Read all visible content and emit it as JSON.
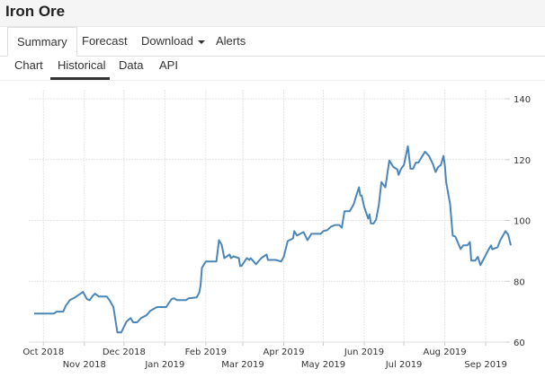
{
  "header": {
    "title": "Iron Ore"
  },
  "tabs": [
    {
      "label": "Summary",
      "active": true
    },
    {
      "label": "Forecast"
    },
    {
      "label": "Download",
      "dropdown": true
    },
    {
      "label": "Alerts"
    }
  ],
  "subtabs": [
    {
      "label": "Chart"
    },
    {
      "label": "Historical",
      "active": true
    },
    {
      "label": "Data"
    },
    {
      "label": "API"
    }
  ],
  "chart_data": {
    "type": "line",
    "title": "",
    "xlabel": "",
    "ylabel": "",
    "ylim": [
      60,
      140
    ],
    "yticks": [
      "60",
      "80",
      "100",
      "120",
      "140"
    ],
    "xlim": [
      "2018-09-24",
      "2019-09-20"
    ],
    "xticks": [
      {
        "date": "2018-10-01",
        "label": "Oct 2018"
      },
      {
        "date": "2018-11-01",
        "label": "Nov 2018"
      },
      {
        "date": "2018-12-01",
        "label": "Dec 2018"
      },
      {
        "date": "2019-01-01",
        "label": "Jan 2019"
      },
      {
        "date": "2019-02-01",
        "label": "Feb 2019"
      },
      {
        "date": "2019-03-01",
        "label": "Mar 2019"
      },
      {
        "date": "2019-04-01",
        "label": "Apr 2019"
      },
      {
        "date": "2019-05-01",
        "label": "May 2019"
      },
      {
        "date": "2019-06-01",
        "label": "Jun 2019"
      },
      {
        "date": "2019-07-01",
        "label": "Jul 2019"
      },
      {
        "date": "2019-08-01",
        "label": "Aug 2019"
      },
      {
        "date": "2019-09-01",
        "label": "Sep 2019"
      }
    ],
    "grid": true,
    "line_color": "#4a86b8",
    "series": [
      {
        "points": [
          [
            "2018-09-24",
            69.4
          ],
          [
            "2018-10-09",
            69.4
          ],
          [
            "2018-10-11",
            70
          ],
          [
            "2018-10-16",
            70
          ],
          [
            "2018-10-18",
            72
          ],
          [
            "2018-10-21",
            73.8
          ],
          [
            "2018-10-25",
            74.7
          ],
          [
            "2018-10-30",
            76.2
          ],
          [
            "2018-10-31",
            76.5
          ],
          [
            "2018-11-03",
            74.1
          ],
          [
            "2018-11-05",
            73.8
          ],
          [
            "2018-11-07",
            75
          ],
          [
            "2018-11-09",
            75.9
          ],
          [
            "2018-11-12",
            75
          ],
          [
            "2018-11-18",
            75
          ],
          [
            "2018-11-20",
            73.8
          ],
          [
            "2018-11-23",
            71.5
          ],
          [
            "2018-11-26",
            63.2
          ],
          [
            "2018-11-29",
            63.2
          ],
          [
            "2018-12-01",
            65
          ],
          [
            "2018-12-03",
            66.8
          ],
          [
            "2018-12-06",
            67.9
          ],
          [
            "2018-12-08",
            66.5
          ],
          [
            "2018-12-11",
            66.5
          ],
          [
            "2018-12-14",
            67.9
          ],
          [
            "2018-12-18",
            68.8
          ],
          [
            "2018-12-21",
            70.3
          ],
          [
            "2018-12-26",
            71.5
          ],
          [
            "2019-01-02",
            71.5
          ],
          [
            "2019-01-06",
            74.1
          ],
          [
            "2019-01-08",
            74.4
          ],
          [
            "2019-01-10",
            73.8
          ],
          [
            "2019-01-17",
            73.8
          ],
          [
            "2019-01-19",
            74.4
          ],
          [
            "2019-01-25",
            74.7
          ],
          [
            "2019-01-27",
            76.2
          ],
          [
            "2019-01-28",
            78.5
          ],
          [
            "2019-01-29",
            84.4
          ],
          [
            "2019-02-01",
            86.5
          ],
          [
            "2019-02-09",
            86.5
          ],
          [
            "2019-02-11",
            93.5
          ],
          [
            "2019-02-13",
            92
          ],
          [
            "2019-02-15",
            87.6
          ],
          [
            "2019-02-19",
            88.8
          ],
          [
            "2019-02-20",
            87.6
          ],
          [
            "2019-02-22",
            88.2
          ],
          [
            "2019-02-26",
            87.6
          ],
          [
            "2019-02-27",
            85
          ],
          [
            "2019-02-28",
            85
          ],
          [
            "2019-03-04",
            87.6
          ],
          [
            "2019-03-06",
            87
          ],
          [
            "2019-03-07",
            87.6
          ],
          [
            "2019-03-11",
            85.6
          ],
          [
            "2019-03-15",
            87.6
          ],
          [
            "2019-03-19",
            88.8
          ],
          [
            "2019-03-20",
            87
          ],
          [
            "2019-03-26",
            87
          ],
          [
            "2019-03-30",
            86.5
          ],
          [
            "2019-04-01",
            88
          ],
          [
            "2019-04-04",
            93.2
          ],
          [
            "2019-04-08",
            94.1
          ],
          [
            "2019-04-09",
            96.5
          ],
          [
            "2019-04-11",
            95
          ],
          [
            "2019-04-16",
            96.2
          ],
          [
            "2019-04-19",
            93.5
          ],
          [
            "2019-04-22",
            95.6
          ],
          [
            "2019-04-29",
            95.6
          ],
          [
            "2019-05-01",
            96.5
          ],
          [
            "2019-05-04",
            96.8
          ],
          [
            "2019-05-07",
            98
          ],
          [
            "2019-05-10",
            98.5
          ],
          [
            "2019-05-13",
            98.5
          ],
          [
            "2019-05-15",
            97.6
          ],
          [
            "2019-05-17",
            103
          ],
          [
            "2019-05-21",
            103
          ],
          [
            "2019-05-24",
            105.3
          ],
          [
            "2019-05-26",
            108.2
          ],
          [
            "2019-05-28",
            110.9
          ],
          [
            "2019-05-29",
            108.2
          ],
          [
            "2019-05-30",
            108.2
          ],
          [
            "2019-06-01",
            104.4
          ],
          [
            "2019-06-04",
            100.6
          ],
          [
            "2019-06-05",
            102
          ],
          [
            "2019-06-06",
            99
          ],
          [
            "2019-06-08",
            99
          ],
          [
            "2019-06-10",
            100.3
          ],
          [
            "2019-06-12",
            105
          ],
          [
            "2019-06-14",
            112.6
          ],
          [
            "2019-06-17",
            110.9
          ],
          [
            "2019-06-20",
            119.7
          ],
          [
            "2019-06-23",
            117.6
          ],
          [
            "2019-06-26",
            116.8
          ],
          [
            "2019-06-27",
            115
          ],
          [
            "2019-06-29",
            117
          ],
          [
            "2019-07-01",
            118.2
          ],
          [
            "2019-07-04",
            124.4
          ],
          [
            "2019-07-06",
            117
          ],
          [
            "2019-07-08",
            117
          ],
          [
            "2019-07-10",
            119
          ],
          [
            "2019-07-12",
            119
          ],
          [
            "2019-07-15",
            121.2
          ],
          [
            "2019-07-17",
            122.6
          ],
          [
            "2019-07-20",
            121.2
          ],
          [
            "2019-07-23",
            118.5
          ],
          [
            "2019-07-25",
            115.9
          ],
          [
            "2019-07-27",
            117.6
          ],
          [
            "2019-07-29",
            118.2
          ],
          [
            "2019-07-31",
            121.2
          ],
          [
            "2019-08-01",
            118.2
          ],
          [
            "2019-08-02",
            112.6
          ],
          [
            "2019-08-05",
            105.3
          ],
          [
            "2019-08-07",
            95
          ],
          [
            "2019-08-09",
            94.7
          ],
          [
            "2019-08-13",
            90.6
          ],
          [
            "2019-08-15",
            91.8
          ],
          [
            "2019-08-18",
            91.8
          ],
          [
            "2019-08-20",
            92.9
          ],
          [
            "2019-08-21",
            86.8
          ],
          [
            "2019-08-24",
            86.8
          ],
          [
            "2019-08-26",
            88
          ],
          [
            "2019-08-28",
            85.3
          ],
          [
            "2019-09-03",
            90.3
          ],
          [
            "2019-09-05",
            91.8
          ],
          [
            "2019-09-06",
            90.5
          ],
          [
            "2019-09-10",
            91.2
          ],
          [
            "2019-09-12",
            93.5
          ],
          [
            "2019-09-16",
            96.5
          ],
          [
            "2019-09-18",
            95.3
          ],
          [
            "2019-09-20",
            91.8
          ]
        ]
      }
    ]
  }
}
